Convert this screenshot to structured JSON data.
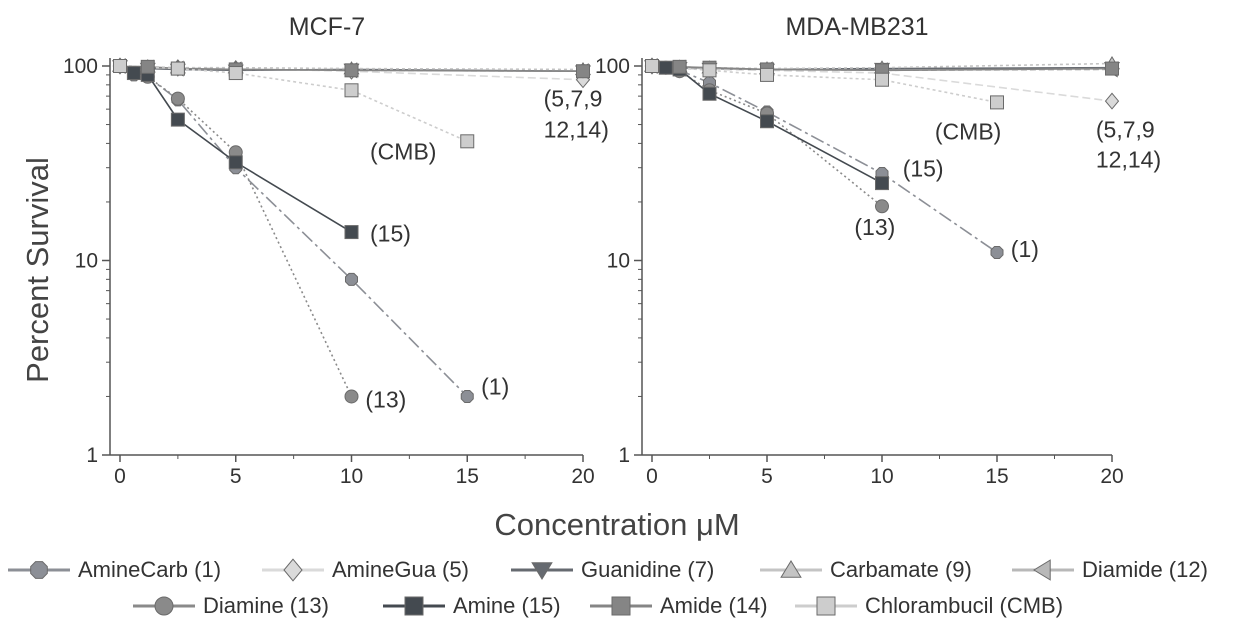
{
  "colors": {
    "AmineCarb": "#8c8f96",
    "AmineGua": "#dadada",
    "Guanidine": "#666a70",
    "Carbamate": "#c4c4c4",
    "Diamide": "#b8b8b8",
    "Diamine": "#8a8a8a",
    "Amine": "#444a50",
    "Amide": "#858585",
    "Chlorambucil": "#cdcdcd"
  },
  "chart_data": [
    {
      "type": "line",
      "title": "MCF-7",
      "xlabel": "Concentration μM",
      "ylabel": "Percent Survival",
      "yscale": "log",
      "xlim": [
        0,
        20
      ],
      "ylim": [
        1,
        100
      ],
      "xticks": [
        "0",
        "5",
        "10",
        "15",
        "20"
      ],
      "yticks": [
        "1",
        "10",
        "100"
      ],
      "series": [
        {
          "key": "AmineCarb",
          "x": [
            0,
            0.6,
            1.2,
            2.5,
            5,
            10,
            15
          ],
          "y": [
            100,
            90,
            88,
            67,
            30,
            8,
            2
          ]
        },
        {
          "key": "AmineGua",
          "x": [
            0,
            1.2,
            2.5,
            5,
            10,
            20
          ],
          "y": [
            100,
            98,
            98,
            97,
            94,
            85
          ]
        },
        {
          "key": "Guanidine",
          "x": [
            0,
            1.2,
            2.5,
            5,
            10,
            20
          ],
          "y": [
            100,
            97,
            96,
            95,
            96,
            94
          ]
        },
        {
          "key": "Carbamate",
          "x": [
            0,
            1.2,
            2.5,
            5,
            10,
            20
          ],
          "y": [
            100,
            99,
            98,
            98,
            97,
            96
          ]
        },
        {
          "key": "Diamide",
          "x": [
            0,
            1.2,
            2.5,
            5,
            10,
            20
          ],
          "y": [
            100,
            98,
            97,
            96,
            95,
            94
          ]
        },
        {
          "key": "Diamine",
          "x": [
            0,
            0.6,
            1.2,
            2.5,
            5,
            10
          ],
          "y": [
            100,
            92,
            88,
            68,
            36,
            2
          ]
        },
        {
          "key": "Amine",
          "x": [
            0,
            0.6,
            1.2,
            2.5,
            5,
            10
          ],
          "y": [
            100,
            92,
            90,
            53,
            32,
            14
          ]
        },
        {
          "key": "Amide",
          "x": [
            0,
            1.2,
            2.5,
            5,
            10,
            20
          ],
          "y": [
            100,
            99,
            97,
            96,
            95,
            94
          ]
        },
        {
          "key": "Chlorambucil",
          "x": [
            0,
            2.5,
            5,
            10,
            15
          ],
          "y": [
            100,
            97,
            92,
            75,
            41
          ]
        }
      ],
      "annotations": [
        {
          "text": "(5,7,9",
          "x": 18.3,
          "y": 62
        },
        {
          "text": "12,14)",
          "x": 18.3,
          "y": 43
        },
        {
          "text": "(CMB)",
          "x": 10.8,
          "y": 33
        },
        {
          "text": "(15)",
          "x": 10.8,
          "y": 12.5
        },
        {
          "text": "(13)",
          "x": 10.6,
          "y": 1.75
        },
        {
          "text": "(1)",
          "x": 15.6,
          "y": 2.05
        }
      ]
    },
    {
      "type": "line",
      "title": "MDA-MB231",
      "xlabel": "Concentration μM",
      "ylabel": "Percent Survival",
      "yscale": "log",
      "xlim": [
        0,
        20
      ],
      "ylim": [
        1,
        100
      ],
      "xticks": [
        "0",
        "5",
        "10",
        "15",
        "20"
      ],
      "yticks": [
        "1",
        "10",
        "100"
      ],
      "series": [
        {
          "key": "AmineCarb",
          "x": [
            0,
            0.6,
            1.2,
            2.5,
            5,
            10,
            15
          ],
          "y": [
            100,
            98,
            95,
            82,
            58,
            28,
            11
          ]
        },
        {
          "key": "AmineGua",
          "x": [
            0,
            1.2,
            2.5,
            5,
            10,
            20
          ],
          "y": [
            100,
            97,
            96,
            95,
            92,
            66
          ]
        },
        {
          "key": "Guanidine",
          "x": [
            0,
            1.2,
            2.5,
            5,
            10,
            20
          ],
          "y": [
            100,
            98,
            97,
            96,
            97,
            98
          ]
        },
        {
          "key": "Carbamate",
          "x": [
            0,
            1.2,
            2.5,
            5,
            10,
            20
          ],
          "y": [
            100,
            99,
            98,
            97,
            98,
            103
          ]
        },
        {
          "key": "Diamide",
          "x": [
            0,
            1.2,
            2.5,
            5,
            10,
            20
          ],
          "y": [
            100,
            98,
            97,
            96,
            95,
            96
          ]
        },
        {
          "key": "Diamine",
          "x": [
            0,
            0.6,
            1.2,
            2.5,
            5,
            10
          ],
          "y": [
            100,
            98,
            94,
            75,
            57,
            19
          ]
        },
        {
          "key": "Amine",
          "x": [
            0,
            0.6,
            1.2,
            2.5,
            5,
            10
          ],
          "y": [
            100,
            98,
            96,
            72,
            52,
            25
          ]
        },
        {
          "key": "Amide",
          "x": [
            0,
            1.2,
            2.5,
            5,
            10,
            20
          ],
          "y": [
            100,
            99,
            98,
            96,
            95,
            97
          ]
        },
        {
          "key": "Chlorambucil",
          "x": [
            0,
            2.5,
            5,
            10,
            15
          ],
          "y": [
            100,
            95,
            90,
            85,
            65
          ]
        }
      ],
      "annotations": [
        {
          "text": "(CMB)",
          "x": 12.3,
          "y": 42
        },
        {
          "text": "(5,7,9",
          "x": 19.3,
          "y": 43
        },
        {
          "text": "12,14)",
          "x": 19.3,
          "y": 30
        },
        {
          "text": "(15)",
          "x": 10.9,
          "y": 27
        },
        {
          "text": "(13)",
          "x": 8.8,
          "y": 13.5
        },
        {
          "text": "(1)",
          "x": 15.6,
          "y": 10.4
        }
      ]
    }
  ],
  "legend": [
    {
      "key": "AmineCarb",
      "label": "AmineCarb (1)",
      "marker": "octagon"
    },
    {
      "key": "AmineGua",
      "label": "AmineGua (5)",
      "marker": "diamond"
    },
    {
      "key": "Guanidine",
      "label": "Guanidine (7)",
      "marker": "triangle-down"
    },
    {
      "key": "Carbamate",
      "label": "Carbamate (9)",
      "marker": "triangle-up"
    },
    {
      "key": "Diamide",
      "label": "Diamide (12)",
      "marker": "triangle-left"
    },
    {
      "key": "Diamine",
      "label": "Diamine (13)",
      "marker": "circle"
    },
    {
      "key": "Amine",
      "label": "Amine (15)",
      "marker": "square"
    },
    {
      "key": "Amide",
      "label": "Amide (14)",
      "marker": "square"
    },
    {
      "key": "Chlorambucil",
      "label": "Chlorambucil (CMB)",
      "marker": "square"
    }
  ]
}
